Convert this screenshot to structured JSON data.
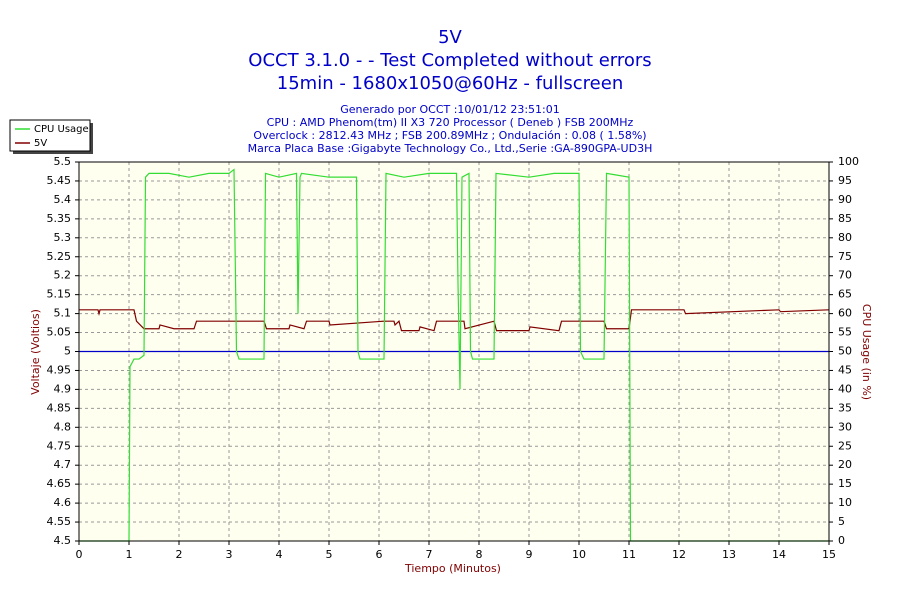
{
  "chart_data": {
    "type": "line",
    "title": "5V",
    "subtitle": [
      "OCCT 3.1.0 -  - Test Completed without errors",
      "15min - 1680x1050@60Hz - fullscreen"
    ],
    "info": [
      "Generado por OCCT :10/01/12 23:51:01",
      "CPU : AMD Phenom(tm) II X3 720 Processor ( Deneb ) FSB 200MHz",
      "Overclock : 2812.43 MHz ; FSB 200.89MHz ; Ondulación : 0.08 ( 1.58%)",
      "Marca Placa Base :Gigabyte Technology Co., Ltd.,Serie :GA-890GPA-UD3H"
    ],
    "xlabel": "Tiempo (Minutos)",
    "ylabel": "Voltaje (Voltios)",
    "y2label": "CPU Usage (in %)",
    "xlim": [
      0,
      15
    ],
    "xticks": [
      0,
      1,
      2,
      3,
      4,
      5,
      6,
      7,
      8,
      9,
      10,
      11,
      12,
      13,
      14,
      15
    ],
    "ylim": [
      4.5,
      5.5
    ],
    "yticks": [
      4.5,
      4.55,
      4.6,
      4.65,
      4.7,
      4.75,
      4.8,
      4.85,
      4.9,
      4.95,
      5,
      5.05,
      5.1,
      5.15,
      5.2,
      5.25,
      5.3,
      5.35,
      5.4,
      5.45,
      5.5
    ],
    "y2lim": [
      0,
      100
    ],
    "y2ticks": [
      0,
      5,
      10,
      15,
      20,
      25,
      30,
      35,
      40,
      45,
      50,
      55,
      60,
      65,
      70,
      75,
      80,
      85,
      90,
      95,
      100
    ],
    "grid": true,
    "legend": "top-left",
    "reference_lines": [
      {
        "y": 5,
        "color": "#0000c8"
      }
    ],
    "series": [
      {
        "name": "CPU Usage",
        "color": "#33dd33",
        "axis": "y2",
        "x": [
          0,
          1.0,
          1.02,
          1.1,
          1.2,
          1.3,
          1.33,
          1.4,
          1.8,
          2.2,
          2.6,
          3.0,
          3.1,
          3.15,
          3.2,
          3.7,
          3.73,
          4.0,
          4.35,
          4.38,
          4.42,
          4.45,
          5.0,
          5.55,
          5.58,
          5.62,
          6.1,
          6.14,
          6.5,
          7.0,
          7.55,
          7.58,
          7.62,
          7.66,
          7.8,
          7.83,
          7.87,
          8.3,
          8.34,
          9.0,
          9.5,
          10.0,
          10.03,
          10.1,
          10.5,
          10.55,
          11.0,
          11.03,
          15
        ],
        "values": [
          0,
          0,
          46,
          48,
          48,
          49,
          96,
          97,
          97,
          96,
          97,
          97,
          98,
          50,
          48,
          48,
          97,
          96,
          97,
          60,
          96,
          97,
          96,
          96,
          50,
          48,
          48,
          97,
          96,
          97,
          97,
          68,
          40,
          96,
          97,
          50,
          48,
          48,
          97,
          96,
          97,
          97,
          50,
          48,
          48,
          97,
          96,
          0,
          0
        ]
      },
      {
        "name": "5V",
        "color": "#800000",
        "x": [
          0,
          0.38,
          0.4,
          0.42,
          1.1,
          1.15,
          1.3,
          1.6,
          1.62,
          1.9,
          2.3,
          2.35,
          3.0,
          3.7,
          3.75,
          4.2,
          4.22,
          4.5,
          4.55,
          5.0,
          5.02,
          6.1,
          6.3,
          6.32,
          6.4,
          6.45,
          6.8,
          6.82,
          7.1,
          7.15,
          7.7,
          7.72,
          8.3,
          8.35,
          9.0,
          9.02,
          9.6,
          9.65,
          10.5,
          10.55,
          11.0,
          11.05,
          12.1,
          12.13,
          14,
          14.03,
          15
        ],
        "values": [
          5.11,
          5.11,
          5.1,
          5.11,
          5.11,
          5.08,
          5.06,
          5.06,
          5.07,
          5.06,
          5.06,
          5.08,
          5.08,
          5.08,
          5.06,
          5.06,
          5.07,
          5.06,
          5.08,
          5.08,
          5.07,
          5.08,
          5.08,
          5.07,
          5.08,
          5.055,
          5.055,
          5.065,
          5.055,
          5.08,
          5.08,
          5.06,
          5.08,
          5.055,
          5.055,
          5.065,
          5.055,
          5.08,
          5.08,
          5.06,
          5.06,
          5.11,
          5.11,
          5.1,
          5.11,
          5.105,
          5.11
        ]
      }
    ]
  }
}
